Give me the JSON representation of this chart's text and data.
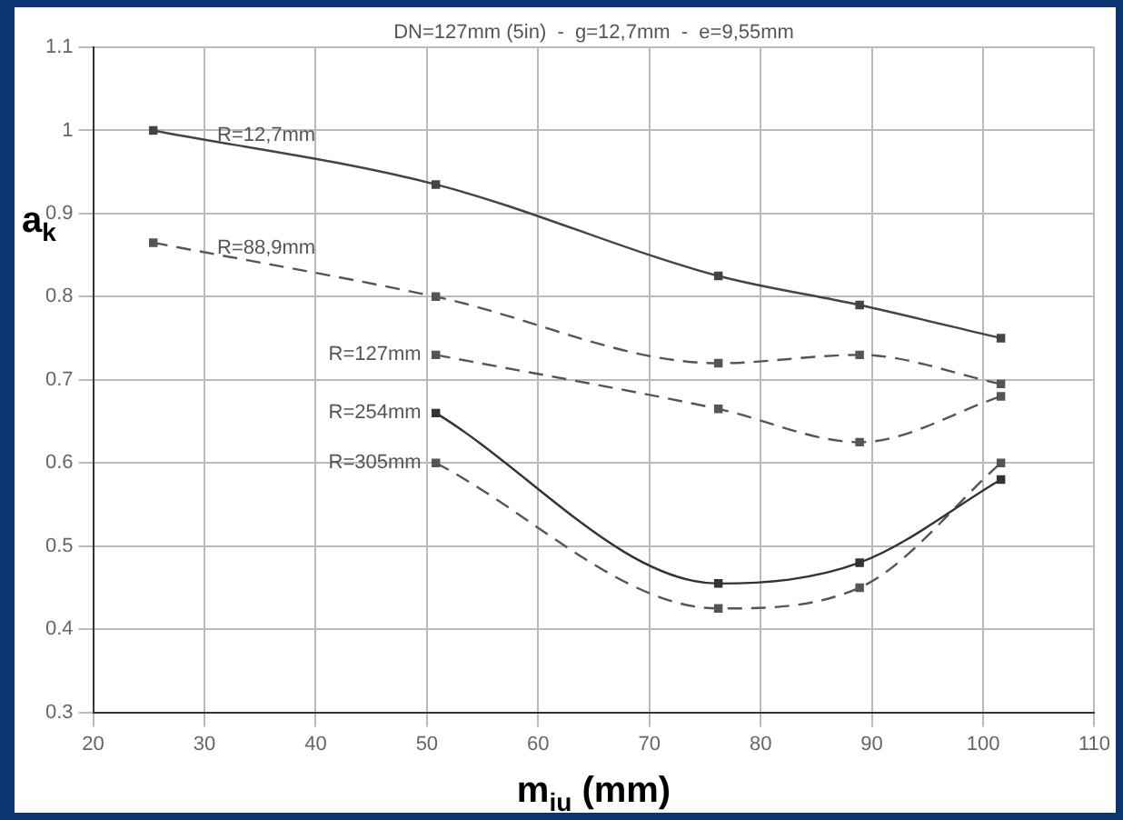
{
  "chart_data": {
    "type": "line",
    "title": "DN=127mm (5in)  -  g=12,7mm  -  e=9,55mm",
    "xlabel": "m$_{iu}$ (mm)",
    "ylabel": "a$_{k}$",
    "xlim": [
      20,
      110
    ],
    "xticks": [
      20,
      30,
      40,
      50,
      60,
      70,
      80,
      90,
      100,
      110
    ],
    "ylim": [
      0.3,
      1.1
    ],
    "yticks": [
      0.3,
      0.4,
      0.5,
      0.6,
      0.7,
      0.8,
      0.9,
      1,
      1.1
    ],
    "grid": true,
    "legend": false,
    "marker": "square",
    "series": [
      {
        "name": "R=12,7mm",
        "color": "#444444",
        "line_style": "solid",
        "x": [
          25.4,
          50.8,
          76.2,
          88.9,
          101.6
        ],
        "values": [
          1.0,
          0.935,
          0.825,
          0.79,
          0.75
        ]
      },
      {
        "name": "R=88,9mm",
        "color": "#555555",
        "line_style": "dashed",
        "x": [
          25.4,
          50.8,
          76.2,
          88.9,
          101.6
        ],
        "values": [
          0.865,
          0.8,
          0.72,
          0.73,
          0.695
        ]
      },
      {
        "name": "R=127mm",
        "color": "#555555",
        "line_style": "dashed",
        "x": [
          50.8,
          76.2,
          88.9,
          101.6
        ],
        "values": [
          0.73,
          0.665,
          0.625,
          0.68
        ]
      },
      {
        "name": "R=254mm",
        "color": "#333333",
        "line_style": "solid",
        "x": [
          50.8,
          76.2,
          88.9,
          101.6
        ],
        "values": [
          0.66,
          0.455,
          0.48,
          0.58
        ]
      },
      {
        "name": "R=305mm",
        "color": "#555555",
        "line_style": "dashed",
        "x": [
          50.8,
          76.2,
          88.9,
          101.6
        ],
        "values": [
          0.6,
          0.425,
          0.45,
          0.6
        ]
      }
    ]
  }
}
